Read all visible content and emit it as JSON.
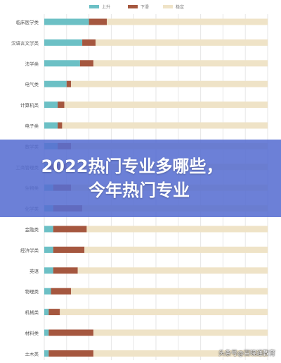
{
  "colors": {
    "rise": "#6cc0c5",
    "fall": "#a5573f",
    "stable": "#efe3c7",
    "grid": "#e6e6e6",
    "label": "#555555",
    "banner_bg": "#586ed2"
  },
  "banner": {
    "line1": "2022热门专业多哪些，",
    "line2": "今年热门专业"
  },
  "watermark": "头条号@百晓通教育",
  "chart_data": {
    "type": "bar",
    "orientation": "horizontal",
    "stacked": true,
    "legend_position": "top",
    "grid": true,
    "xlim": [
      0,
      100
    ],
    "categories": [
      "临床医学类",
      "汉语言文学类",
      "法学类",
      "电气类",
      "计算机类",
      "电子类",
      "数学类",
      "工商管理类",
      "生物类",
      "化学类",
      "金融类",
      "经济学类",
      "英语",
      "物理类",
      "机械类",
      "材料类",
      "土木类"
    ],
    "series": [
      {
        "name": "上升",
        "color": "#6cc0c5",
        "values": [
          20,
          17,
          16,
          10,
          6,
          6,
          6,
          2,
          4,
          4,
          4,
          4,
          4,
          3,
          2,
          2,
          2
        ]
      },
      {
        "name": "下滑",
        "color": "#a5573f",
        "values": [
          8,
          6,
          6,
          2,
          3,
          2,
          6,
          8,
          8,
          13,
          15,
          14,
          11,
          9,
          5,
          20,
          20
        ]
      },
      {
        "name": "稳定",
        "color": "#efe3c7",
        "values": [
          72,
          77,
          78,
          88,
          91,
          92,
          88,
          90,
          88,
          83,
          81,
          82,
          85,
          88,
          93,
          78,
          78
        ]
      }
    ]
  }
}
